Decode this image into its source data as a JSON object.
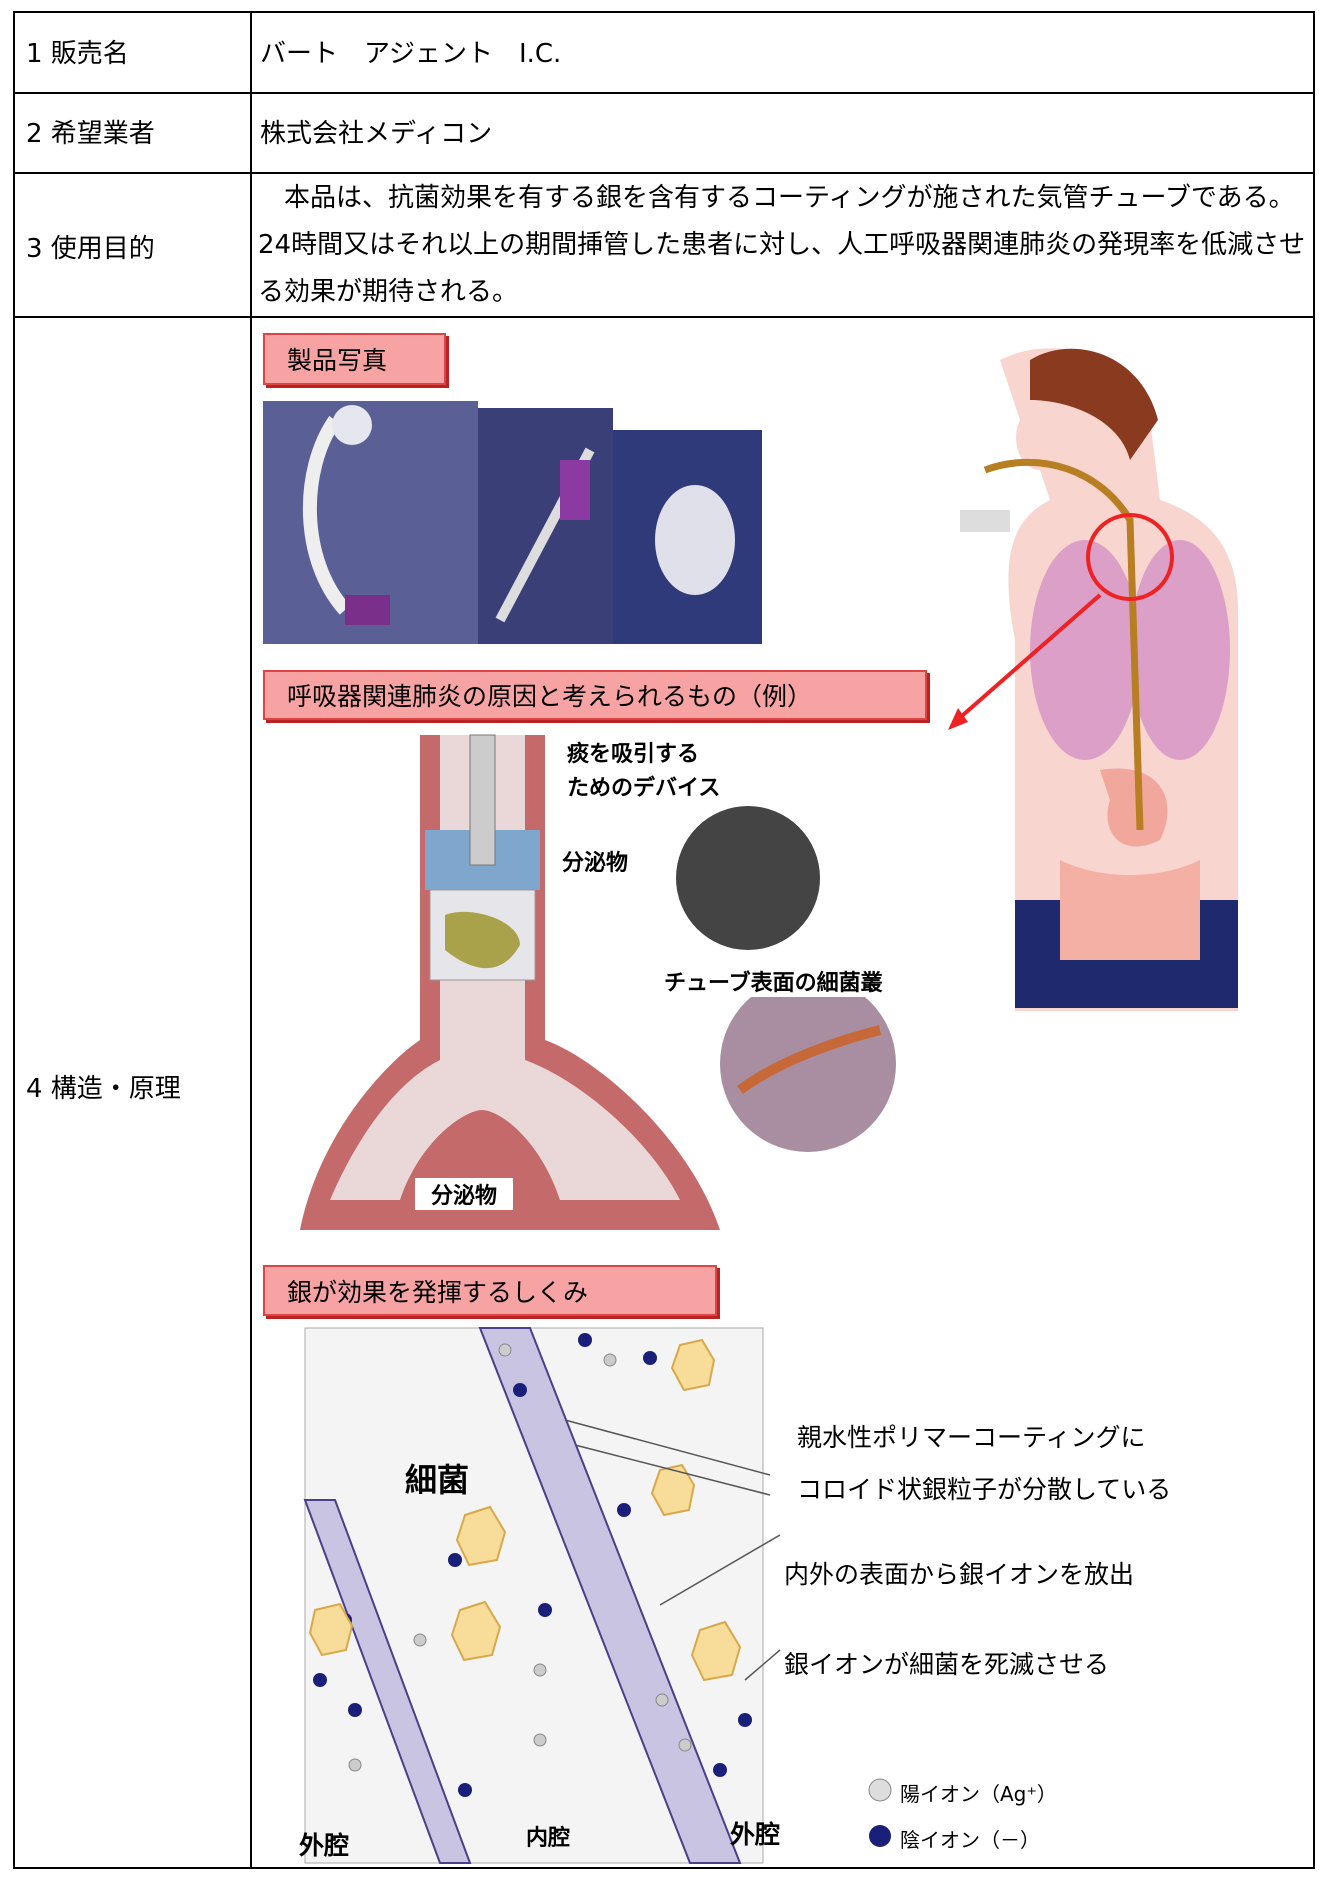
{
  "table": {
    "rows": [
      {
        "label": "1 販売名",
        "content": "バート　アジェント　I.C."
      },
      {
        "label": "2 希望業者",
        "content": "株式会社メディコン"
      },
      {
        "label": "3 使用目的",
        "content": "本品は、抗菌効果を有する銀を含有するコーティングが施された気管チューブである。24時間又はそれ以上の期間挿管した患者に対し、人工呼吸器関連肺炎の発現率を低減させる効果が期待される。"
      },
      {
        "label": "4 構造・原理",
        "sections": [
          {
            "heading": "製品写真"
          },
          {
            "heading": "呼吸器関連肺炎の原因と考えられるもの（例）",
            "labels": [
              "痰を吸引する",
              "ためのデバイス",
              "分泌物",
              "チューブ表面の細菌叢",
              "分泌物"
            ]
          },
          {
            "heading": "銀が効果を発揮するしくみ",
            "labels": [
              "親水性ポリマーコーティングに",
              "コロイド状銀粒子が分散している",
              "内外の表面から銀イオンを放出",
              "銀イオンが細菌を死滅させる",
              "細菌",
              "外腔",
              "内腔",
              "外腔"
            ],
            "legend": [
              "陽イオン（Ag⁺）",
              "陰イオン（－）"
            ]
          }
        ]
      }
    ]
  }
}
